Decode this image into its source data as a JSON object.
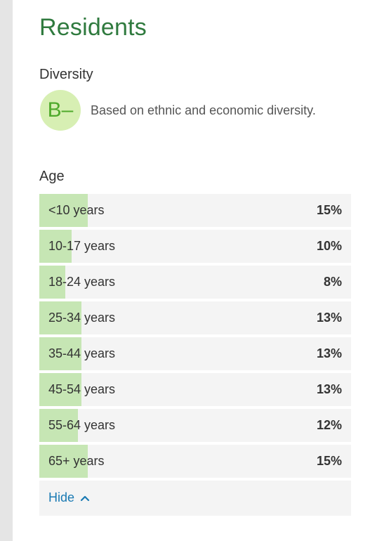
{
  "section": {
    "title": "Residents"
  },
  "diversity": {
    "label": "Diversity",
    "grade": "B–",
    "description": "Based on ethnic and economic diversity."
  },
  "age": {
    "label": "Age",
    "rows": [
      {
        "label": "<10 years",
        "percent": "15%",
        "value": 15
      },
      {
        "label": "10-17 years",
        "percent": "10%",
        "value": 10
      },
      {
        "label": "18-24 years",
        "percent": "8%",
        "value": 8
      },
      {
        "label": "25-34 years",
        "percent": "13%",
        "value": 13
      },
      {
        "label": "35-44 years",
        "percent": "13%",
        "value": 13
      },
      {
        "label": "45-54 years",
        "percent": "13%",
        "value": 13
      },
      {
        "label": "55-64 years",
        "percent": "12%",
        "value": 12
      },
      {
        "label": "65+ years",
        "percent": "15%",
        "value": 15
      }
    ],
    "toggle_label": "Hide"
  },
  "colors": {
    "title_green": "#2f7a3e",
    "grade_bg": "#d7efb3",
    "grade_fg": "#4faa2c",
    "bar_fill": "#c6e6b4",
    "row_bg": "#f4f4f4",
    "link_blue": "#1a7ab3"
  },
  "icons": {
    "toggle": "chevron-up-icon"
  }
}
